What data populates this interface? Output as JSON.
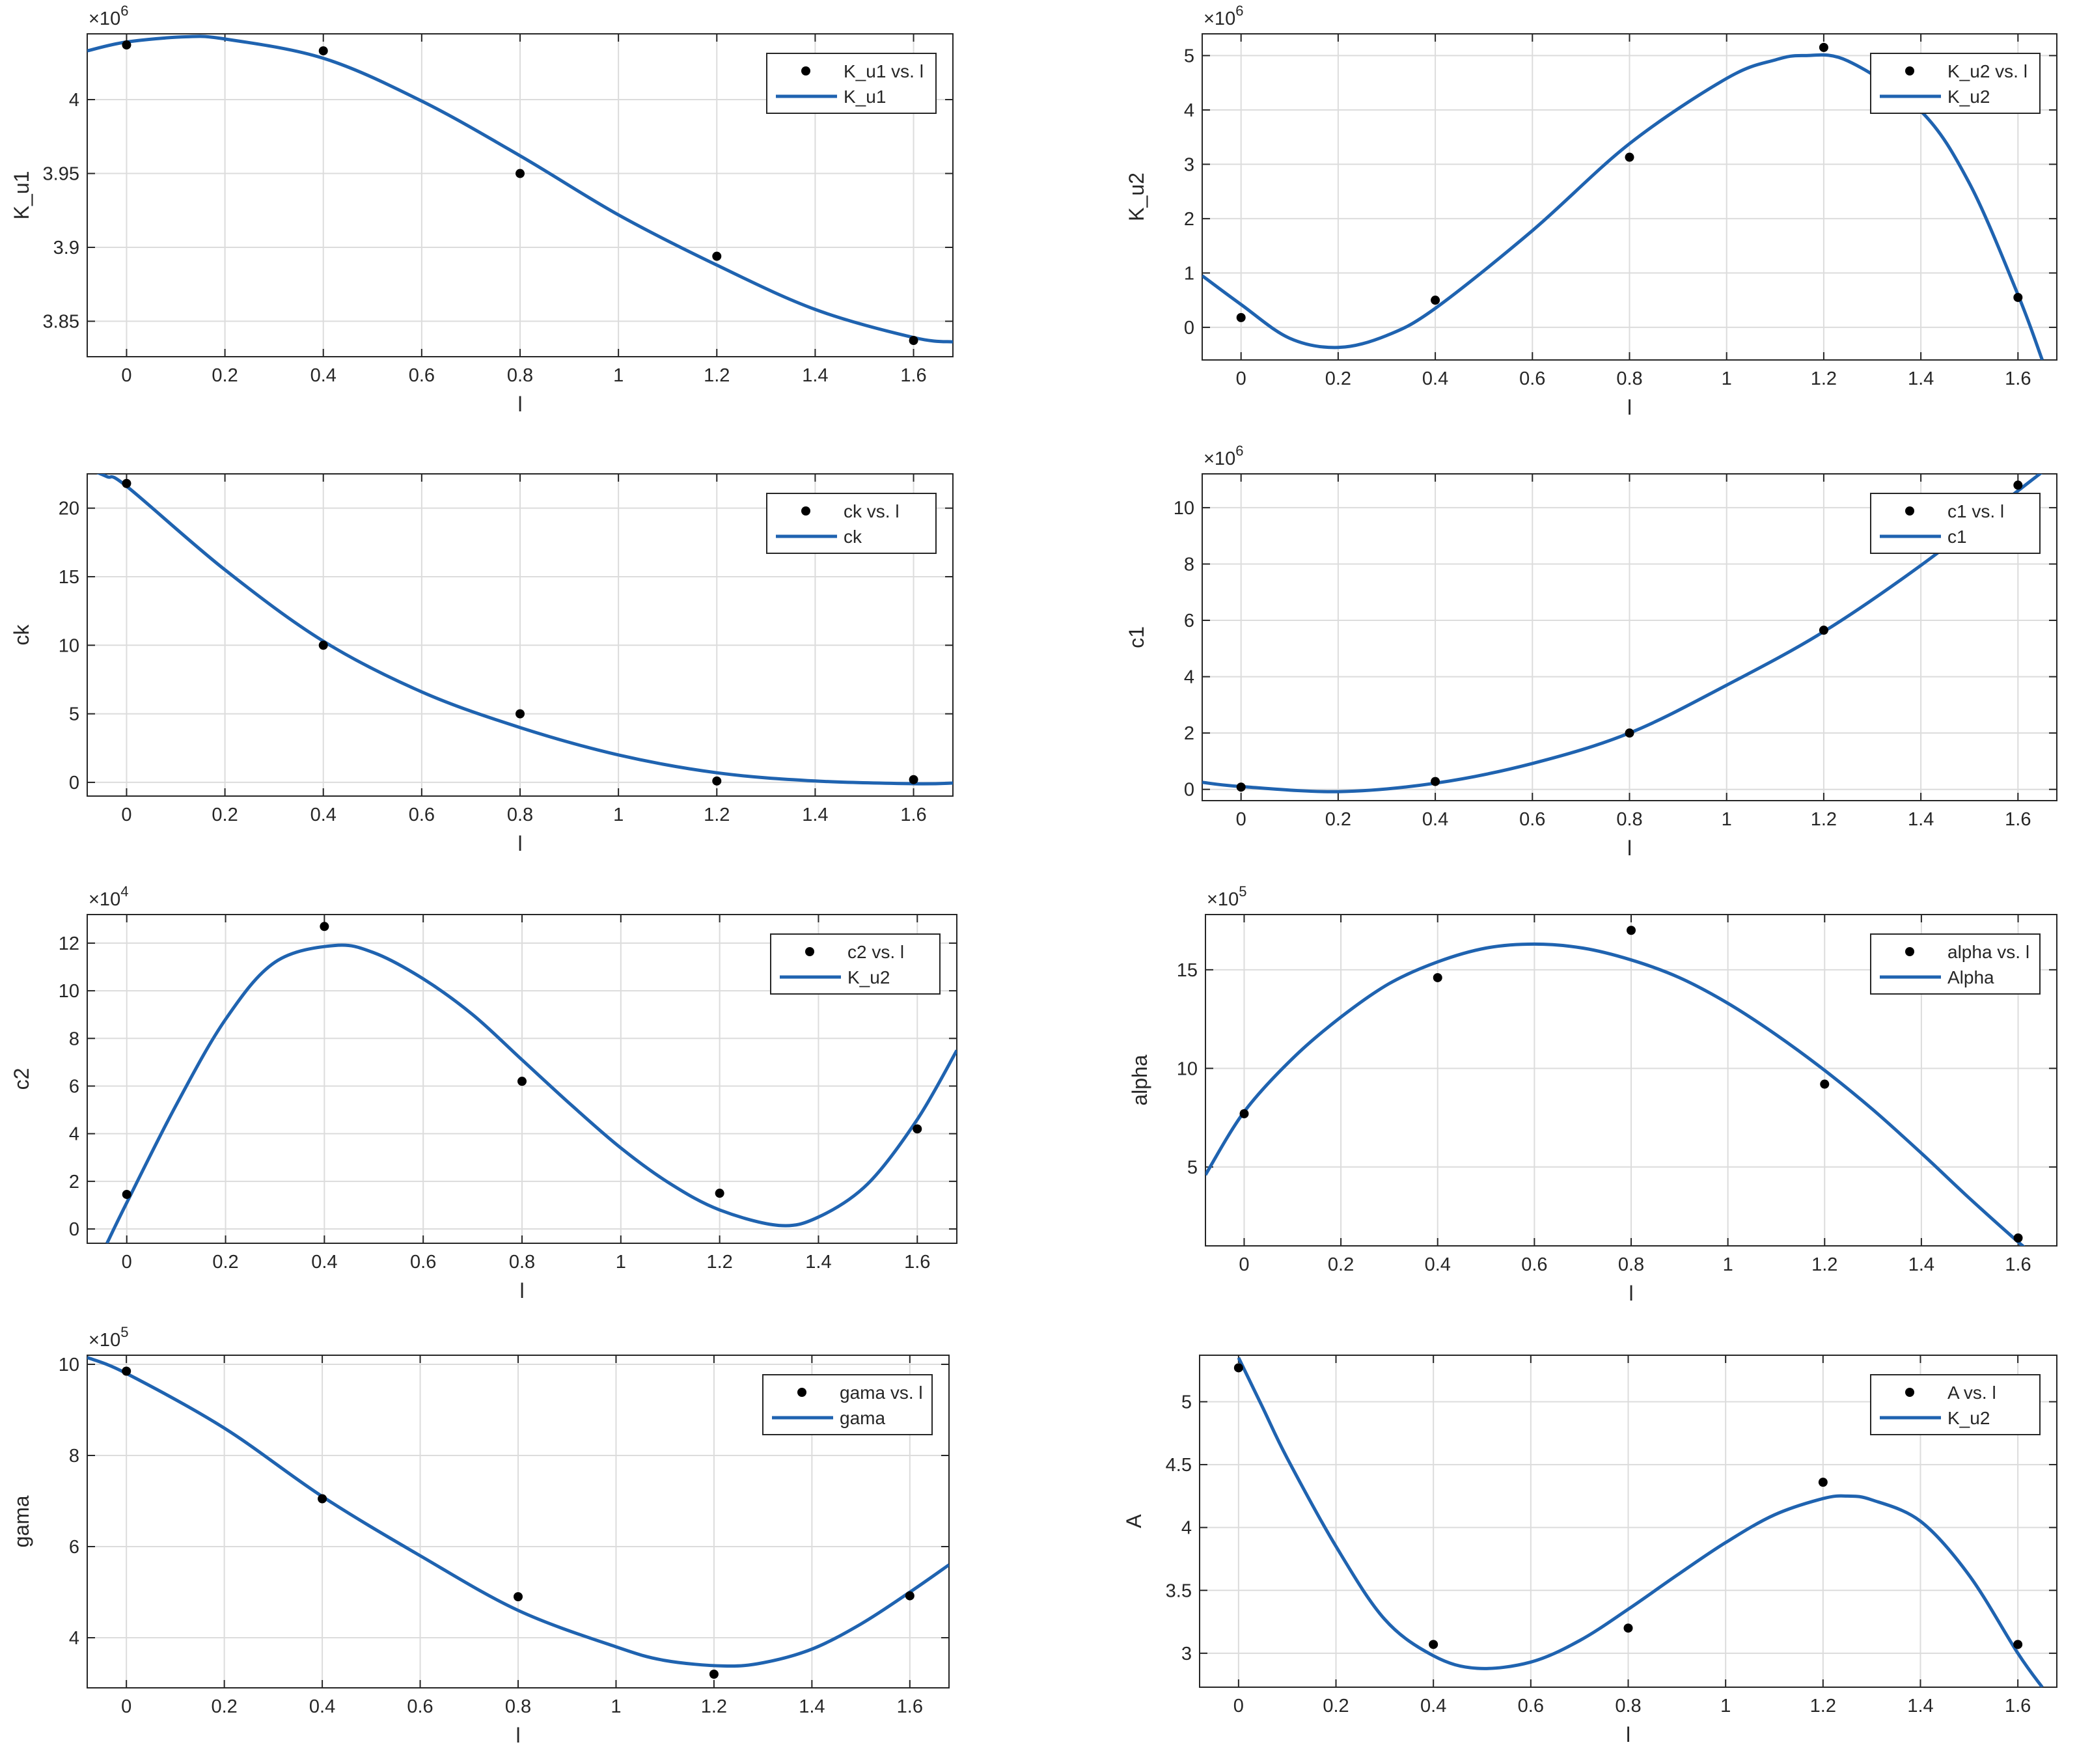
{
  "style": {
    "line_color": "#1f63b0",
    "marker_color": "#000000",
    "grid_color": "#dcdcdc",
    "axis_color": "#262626",
    "legend_border": "#262626"
  },
  "chart_data": [
    {
      "type": "line",
      "position": "row1-left",
      "xlabel": "l",
      "ylabel": "K_u1",
      "exponent": "×10",
      "exponent_power": "6",
      "scale": 1000000,
      "xlim": [
        -0.08,
        1.68
      ],
      "ylim": [
        3.826,
        4.0445
      ],
      "xticks": [
        0,
        0.2,
        0.4,
        0.6,
        0.8,
        1,
        1.2,
        1.4,
        1.6
      ],
      "xtick_labels": [
        "0",
        "0.2",
        "0.4",
        "0.6",
        "0.8",
        "1",
        "1.2",
        "1.4",
        "1.6"
      ],
      "yticks": [
        3.85,
        3.9,
        3.95,
        4
      ],
      "ytick_labels": [
        "3.85",
        "3.9",
        "3.95",
        "4"
      ],
      "legend": {
        "placement": "top-right",
        "entries": [
          "K_u1 vs. l",
          "K_u1"
        ]
      },
      "series": [
        {
          "name": "K_u1 vs. l",
          "kind": "markers",
          "x": [
            0,
            0.4,
            0.8,
            1.2,
            1.6
          ],
          "y": [
            4.037,
            4.033,
            3.95,
            3.894,
            3.837
          ]
        },
        {
          "name": "K_u1",
          "kind": "line",
          "x": [
            -0.08,
            0.0,
            0.12,
            0.2,
            0.4,
            0.6,
            0.8,
            1.0,
            1.2,
            1.4,
            1.6,
            1.68
          ],
          "y": [
            4.033,
            4.039,
            4.0425,
            4.041,
            4.028,
            3.999,
            3.962,
            3.922,
            3.888,
            3.858,
            3.839,
            3.836
          ]
        }
      ]
    },
    {
      "type": "line",
      "position": "row1-right",
      "xlabel": "l",
      "ylabel": "K_u2",
      "exponent": "×10",
      "exponent_power": "6",
      "scale": 1000000,
      "xlim": [
        -0.08,
        1.68
      ],
      "ylim": [
        -0.6,
        5.4
      ],
      "xticks": [
        0,
        0.2,
        0.4,
        0.6,
        0.8,
        1,
        1.2,
        1.4,
        1.6
      ],
      "xtick_labels": [
        "0",
        "0.2",
        "0.4",
        "0.6",
        "0.8",
        "1",
        "1.2",
        "1.4",
        "1.6"
      ],
      "yticks": [
        0,
        1,
        2,
        3,
        4,
        5
      ],
      "ytick_labels": [
        "0",
        "1",
        "2",
        "3",
        "4",
        "5"
      ],
      "legend": {
        "placement": "top-right",
        "entries": [
          "K_u2 vs. l",
          "K_u2"
        ]
      },
      "series": [
        {
          "name": "K_u2 vs. l",
          "kind": "markers",
          "x": [
            0,
            0.4,
            0.8,
            1.2,
            1.6
          ],
          "y": [
            0.18,
            0.5,
            3.13,
            5.15,
            0.55
          ]
        },
        {
          "name": "K_u2",
          "kind": "line",
          "x": [
            -0.08,
            0.0,
            0.1,
            0.2,
            0.3,
            0.4,
            0.6,
            0.8,
            1.0,
            1.1,
            1.16,
            1.25,
            1.4,
            1.5,
            1.6,
            1.65
          ],
          "y": [
            0.95,
            0.42,
            -0.2,
            -0.37,
            -0.15,
            0.35,
            1.78,
            3.38,
            4.58,
            4.92,
            5.0,
            4.9,
            3.98,
            2.65,
            0.6,
            -0.6
          ]
        }
      ]
    },
    {
      "type": "line",
      "position": "row2-left",
      "xlabel": "l",
      "ylabel": "ck",
      "exponent": "",
      "exponent_power": "",
      "scale": 1,
      "xlim": [
        -0.08,
        1.68
      ],
      "ylim": [
        -1,
        22.5
      ],
      "xticks": [
        0,
        0.2,
        0.4,
        0.6,
        0.8,
        1,
        1.2,
        1.4,
        1.6
      ],
      "xtick_labels": [
        "0",
        "0.2",
        "0.4",
        "0.6",
        "0.8",
        "1",
        "1.2",
        "1.4",
        "1.6"
      ],
      "yticks": [
        0,
        5,
        10,
        15,
        20
      ],
      "ytick_labels": [
        "0",
        "5",
        "10",
        "15",
        "20"
      ],
      "legend": {
        "placement": "top-right",
        "entries": [
          "ck vs. l",
          "ck"
        ]
      },
      "series": [
        {
          "name": "ck vs. l",
          "kind": "markers",
          "x": [
            0,
            0.4,
            0.8,
            1.2,
            1.6
          ],
          "y": [
            21.8,
            10.0,
            5.0,
            0.1,
            0.2
          ]
        },
        {
          "name": "ck",
          "kind": "line",
          "x": [
            -0.08,
            -0.04,
            0.0,
            0.2,
            0.4,
            0.6,
            0.8,
            1.0,
            1.2,
            1.4,
            1.6,
            1.68
          ],
          "y": [
            22.9,
            22.3,
            21.6,
            15.5,
            10.3,
            6.6,
            4.0,
            2.0,
            0.7,
            0.1,
            -0.1,
            -0.05
          ]
        }
      ]
    },
    {
      "type": "line",
      "position": "row2-right",
      "xlabel": "l",
      "ylabel": "c1",
      "exponent": "×10",
      "exponent_power": "6",
      "scale": 1000000,
      "xlim": [
        -0.08,
        1.68
      ],
      "ylim": [
        -0.4,
        11.2
      ],
      "xticks": [
        0,
        0.2,
        0.4,
        0.6,
        0.8,
        1,
        1.2,
        1.4,
        1.6
      ],
      "xtick_labels": [
        "0",
        "0.2",
        "0.4",
        "0.6",
        "0.8",
        "1",
        "1.2",
        "1.4",
        "1.6"
      ],
      "yticks": [
        0,
        2,
        4,
        6,
        8,
        10
      ],
      "ytick_labels": [
        "0",
        "2",
        "4",
        "6",
        "8",
        "10"
      ],
      "legend": {
        "placement": "top-right",
        "entries": [
          "c1 vs. l",
          "c1"
        ]
      },
      "series": [
        {
          "name": "c1 vs. l",
          "kind": "markers",
          "x": [
            0,
            0.4,
            0.8,
            1.2,
            1.6
          ],
          "y": [
            0.08,
            0.28,
            2.0,
            5.65,
            10.8
          ]
        },
        {
          "name": "c1",
          "kind": "line",
          "x": [
            -0.08,
            0.0,
            0.2,
            0.4,
            0.6,
            0.8,
            1.0,
            1.2,
            1.4,
            1.6,
            1.66
          ],
          "y": [
            0.25,
            0.1,
            -0.08,
            0.22,
            0.92,
            2.0,
            3.7,
            5.6,
            7.95,
            10.6,
            11.4
          ]
        }
      ]
    },
    {
      "type": "line",
      "position": "row3-left",
      "xlabel": "l",
      "ylabel": "c2",
      "exponent": "×10",
      "exponent_power": "4",
      "scale": 10000,
      "xlim": [
        -0.08,
        1.68
      ],
      "ylim": [
        -0.6,
        13.2
      ],
      "xticks": [
        0,
        0.2,
        0.4,
        0.6,
        0.8,
        1,
        1.2,
        1.4,
        1.6
      ],
      "xtick_labels": [
        "0",
        "0.2",
        "0.4",
        "0.6",
        "0.8",
        "1",
        "1.2",
        "1.4",
        "1.6"
      ],
      "yticks": [
        0,
        2,
        4,
        6,
        8,
        10,
        12
      ],
      "ytick_labels": [
        "0",
        "2",
        "4",
        "6",
        "8",
        "10",
        "12"
      ],
      "legend": {
        "placement": "top-right",
        "entries": [
          "c2 vs. l",
          "K_u2"
        ]
      },
      "series": [
        {
          "name": "c2 vs. l",
          "kind": "markers",
          "x": [
            0,
            0.4,
            0.8,
            1.2,
            1.6
          ],
          "y": [
            1.45,
            12.7,
            6.2,
            1.5,
            4.2
          ]
        },
        {
          "name": "K_u2",
          "kind": "line",
          "x": [
            -0.04,
            0.0,
            0.1,
            0.2,
            0.3,
            0.42,
            0.5,
            0.6,
            0.7,
            0.8,
            0.9,
            1.0,
            1.1,
            1.2,
            1.32,
            1.4,
            1.5,
            1.6,
            1.68
          ],
          "y": [
            -0.6,
            1.1,
            5.2,
            8.8,
            11.2,
            11.9,
            11.6,
            10.5,
            9.0,
            7.1,
            5.2,
            3.4,
            1.9,
            0.8,
            0.15,
            0.5,
            1.9,
            4.6,
            7.5
          ]
        }
      ]
    },
    {
      "type": "line",
      "position": "row3-right",
      "xlabel": "l",
      "ylabel": "alpha",
      "exponent": "×10",
      "exponent_power": "5",
      "scale": 100000,
      "xlim": [
        -0.08,
        1.68
      ],
      "ylim": [
        1.0,
        17.8
      ],
      "xticks": [
        0,
        0.2,
        0.4,
        0.6,
        0.8,
        1,
        1.2,
        1.4,
        1.6
      ],
      "xtick_labels": [
        "0",
        "0.2",
        "0.4",
        "0.6",
        "0.8",
        "1",
        "1.2",
        "1.4",
        "1.6"
      ],
      "yticks": [
        5,
        10,
        15
      ],
      "ytick_labels": [
        "5",
        "10",
        "15"
      ],
      "legend": {
        "placement": "top-right",
        "entries": [
          "alpha vs. l",
          "Alpha"
        ]
      },
      "series": [
        {
          "name": "alpha vs. l",
          "kind": "markers",
          "x": [
            0,
            0.4,
            0.8,
            1.2,
            1.6
          ],
          "y": [
            7.7,
            14.6,
            17.0,
            9.2,
            1.4
          ]
        },
        {
          "name": "Alpha",
          "kind": "line",
          "x": [
            -0.08,
            0.0,
            0.1,
            0.2,
            0.3,
            0.4,
            0.5,
            0.6,
            0.7,
            0.8,
            0.9,
            1.0,
            1.1,
            1.2,
            1.3,
            1.4,
            1.5,
            1.6,
            1.63
          ],
          "y": [
            4.6,
            7.8,
            10.5,
            12.6,
            14.3,
            15.4,
            16.1,
            16.3,
            16.1,
            15.5,
            14.6,
            13.3,
            11.7,
            9.9,
            7.9,
            5.7,
            3.4,
            1.2,
            0.6
          ]
        }
      ]
    },
    {
      "type": "line",
      "position": "row4-left",
      "xlabel": "l",
      "ylabel": "gama",
      "exponent": "×10",
      "exponent_power": "5",
      "scale": 100000,
      "xlim": [
        -0.08,
        1.68
      ],
      "ylim": [
        2.9,
        10.2
      ],
      "xticks": [
        0,
        0.2,
        0.4,
        0.6,
        0.8,
        1,
        1.2,
        1.4,
        1.6
      ],
      "xtick_labels": [
        "0",
        "0.2",
        "0.4",
        "0.6",
        "0.8",
        "1",
        "1.2",
        "1.4",
        "1.6"
      ],
      "yticks": [
        4,
        6,
        8,
        10
      ],
      "ytick_labels": [
        "4",
        "6",
        "8",
        "10"
      ],
      "legend": {
        "placement": "top-right",
        "entries": [
          "gama vs. l",
          "gama"
        ]
      },
      "series": [
        {
          "name": "gama vs. l",
          "kind": "markers",
          "x": [
            0,
            0.4,
            0.8,
            1.2,
            1.6
          ],
          "y": [
            9.85,
            7.05,
            4.9,
            3.2,
            4.92
          ]
        },
        {
          "name": "gama",
          "kind": "line",
          "x": [
            -0.08,
            0.0,
            0.2,
            0.4,
            0.6,
            0.8,
            1.0,
            1.1,
            1.22,
            1.3,
            1.4,
            1.5,
            1.6,
            1.68
          ],
          "y": [
            10.15,
            9.8,
            8.6,
            7.1,
            5.8,
            4.6,
            3.8,
            3.5,
            3.38,
            3.45,
            3.75,
            4.3,
            5.0,
            5.6
          ]
        }
      ]
    },
    {
      "type": "line",
      "position": "row4-right",
      "xlabel": "l",
      "ylabel": "A",
      "exponent": "",
      "exponent_power": "",
      "scale": 1,
      "xlim": [
        -0.08,
        1.68
      ],
      "ylim": [
        2.73,
        5.37
      ],
      "xticks": [
        0,
        0.2,
        0.4,
        0.6,
        0.8,
        1,
        1.2,
        1.4,
        1.6
      ],
      "xtick_labels": [
        "0",
        "0.2",
        "0.4",
        "0.6",
        "0.8",
        "1",
        "1.2",
        "1.4",
        "1.6"
      ],
      "yticks": [
        3,
        3.5,
        4,
        4.5,
        5
      ],
      "ytick_labels": [
        "3",
        "3.5",
        "4",
        "4.5",
        "5"
      ],
      "legend": {
        "placement": "top-right",
        "entries": [
          "A vs. l",
          "K_u2"
        ]
      },
      "series": [
        {
          "name": "A vs. l",
          "kind": "markers",
          "x": [
            0,
            0.4,
            0.8,
            1.2,
            1.6
          ],
          "y": [
            5.27,
            3.07,
            3.2,
            4.36,
            3.07
          ]
        },
        {
          "name": "K_u2",
          "kind": "line",
          "x": [
            0.0,
            0.05,
            0.1,
            0.2,
            0.3,
            0.4,
            0.49,
            0.6,
            0.7,
            0.8,
            0.9,
            1.0,
            1.1,
            1.2,
            1.25,
            1.3,
            1.4,
            1.5,
            1.6,
            1.65
          ],
          "y": [
            5.35,
            4.95,
            4.55,
            3.85,
            3.27,
            2.98,
            2.88,
            2.93,
            3.1,
            3.35,
            3.62,
            3.88,
            4.1,
            4.23,
            4.25,
            4.22,
            4.05,
            3.62,
            3.0,
            2.73
          ]
        }
      ]
    }
  ]
}
